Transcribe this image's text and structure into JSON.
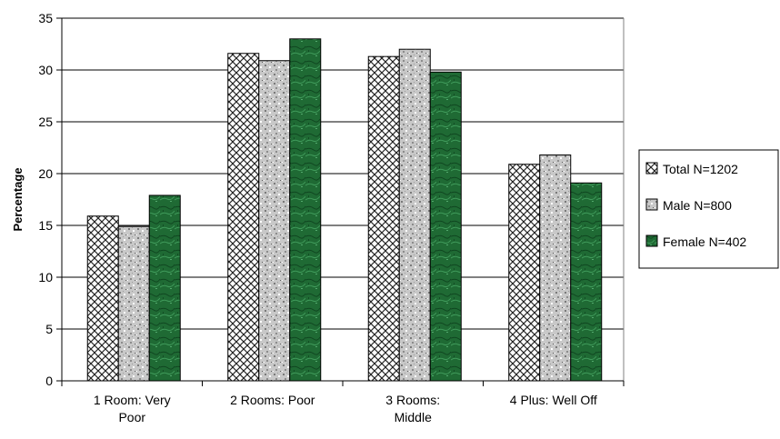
{
  "chart_data": {
    "type": "bar",
    "ylabel": "Percentage",
    "ylim": [
      0,
      35
    ],
    "yticks": [
      0,
      5,
      10,
      15,
      20,
      25,
      30,
      35
    ],
    "grid": true,
    "legend_position": "right",
    "categories": [
      [
        "1 Room: Very",
        "Poor"
      ],
      [
        "2 Rooms: Poor"
      ],
      [
        "3 Rooms:",
        "Middle"
      ],
      [
        "4 Plus: Well Off"
      ]
    ],
    "series": [
      {
        "name": "Total N=1202",
        "values": [
          15.9,
          31.6,
          31.3,
          20.9
        ],
        "pattern": "crosshatch",
        "color": "#ffffff"
      },
      {
        "name": "Male N=800",
        "values": [
          14.9,
          30.9,
          32.0,
          21.8
        ],
        "pattern": "granite",
        "color": "#c4c4c4"
      },
      {
        "name": "Female N=402",
        "values": [
          17.9,
          33.0,
          29.8,
          19.1
        ],
        "pattern": "marble",
        "color": "#1e6b33"
      }
    ]
  }
}
